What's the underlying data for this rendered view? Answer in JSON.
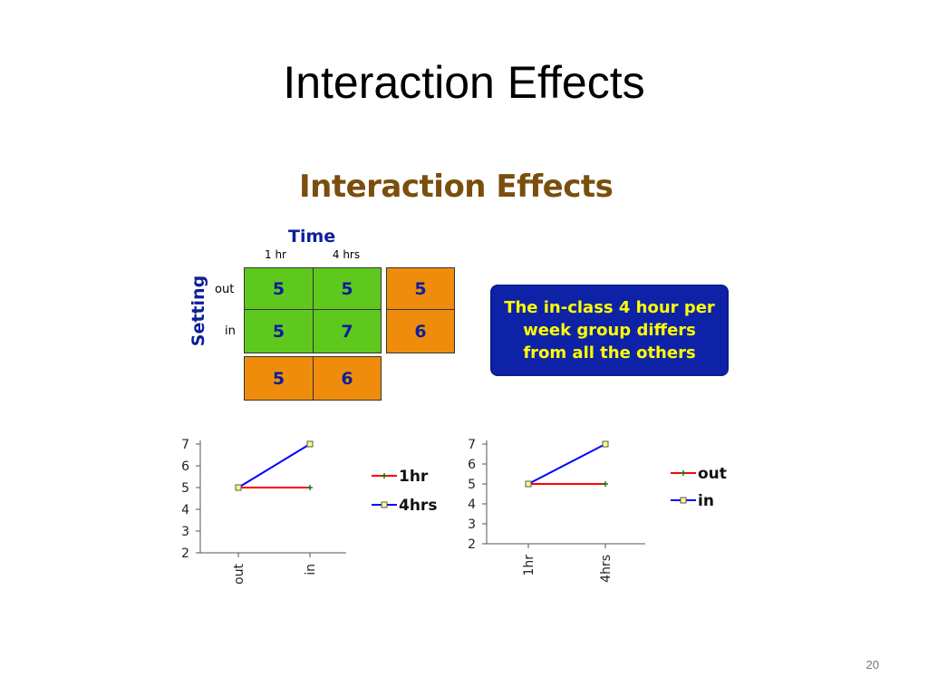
{
  "slide": {
    "title": "Interaction Effects",
    "page_number": "20"
  },
  "figure": {
    "title": "Interaction Effects",
    "title_color": "#7a4e0c",
    "text_color": "#0d1f9a",
    "cell_green": "#5fc81e",
    "cell_orange": "#ef8c0c",
    "note_bg": "#0d22a6",
    "note_text": "#ffff00"
  },
  "table": {
    "column_header": "Time",
    "columns": [
      "1 hr",
      "4 hrs"
    ],
    "row_header": "Setting",
    "rows": [
      "out",
      "in"
    ],
    "cells": [
      [
        "5",
        "5"
      ],
      [
        "5",
        "7"
      ]
    ],
    "row_means": [
      "5",
      "6"
    ],
    "column_means": [
      "5",
      "6"
    ]
  },
  "note": {
    "lines": [
      "The in-class 4 hour per",
      "week group differs",
      "from all the others"
    ]
  },
  "chart_data": [
    {
      "type": "line",
      "categories": [
        "out",
        "in"
      ],
      "series": [
        {
          "name": "1hr",
          "values": [
            5,
            5
          ],
          "color": "#ff0000",
          "marker": "plus"
        },
        {
          "name": "4hrs",
          "values": [
            5,
            7
          ],
          "color": "#0000ff",
          "marker": "square"
        }
      ],
      "ylim": [
        2,
        7
      ],
      "yticks": [
        "2",
        "3",
        "4",
        "5",
        "6",
        "7"
      ],
      "grid": false,
      "legend": "right"
    },
    {
      "type": "line",
      "categories": [
        "1hr",
        "4hrs"
      ],
      "series": [
        {
          "name": "out",
          "values": [
            5,
            5
          ],
          "color": "#ff0000",
          "marker": "plus"
        },
        {
          "name": "in",
          "values": [
            5,
            7
          ],
          "color": "#0000ff",
          "marker": "square"
        }
      ],
      "ylim": [
        2,
        7
      ],
      "yticks": [
        "2",
        "3",
        "4",
        "5",
        "6",
        "7"
      ],
      "grid": false,
      "legend": "right"
    }
  ]
}
